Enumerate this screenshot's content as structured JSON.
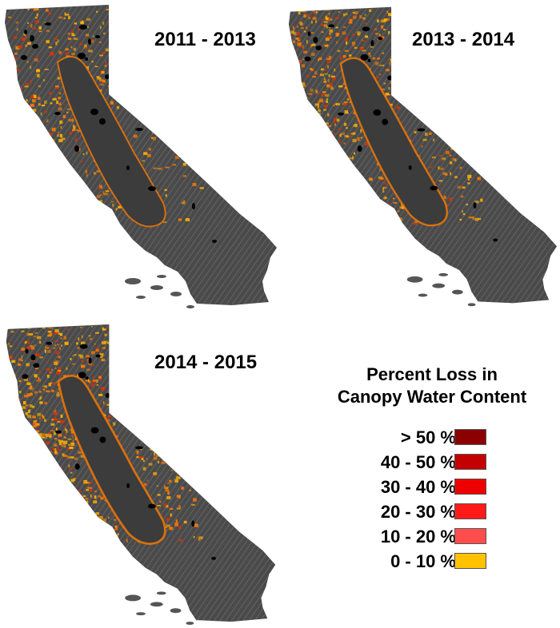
{
  "maps": [
    {
      "label": "2011 - 2013",
      "intensity": 0.45
    },
    {
      "label": "2013 - 2014",
      "intensity": 0.7
    },
    {
      "label": "2014 - 2015",
      "intensity": 0.85
    }
  ],
  "legend": {
    "title_line1": "Percent Loss in",
    "title_line2": "Canopy Water Content",
    "items": [
      {
        "label": "> 50 %",
        "color": "#8b0000"
      },
      {
        "label": "40 - 50 %",
        "color": "#c40000"
      },
      {
        "label": "30 - 40 %",
        "color": "#ee0000"
      },
      {
        "label": "20 - 30 %",
        "color": "#ff1a1a"
      },
      {
        "label": "10 - 20 %",
        "color": "#ff4d4d"
      },
      {
        "label": "0 - 10 %",
        "color": "#ffc200"
      }
    ]
  },
  "colors": {
    "terrain": "#4a4a4a",
    "valley": "#3c3c3c",
    "hatch": "#8c8c8c",
    "loss_low": "#ffb000",
    "loss_mid": "#ff7a00",
    "loss_high": "#e53000",
    "lake": "#000000"
  }
}
